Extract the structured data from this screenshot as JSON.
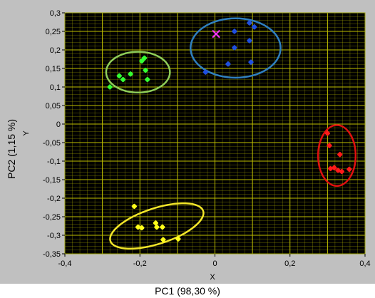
{
  "chart_data": {
    "type": "scatter",
    "title": "",
    "xlabel": "PC1 (98,30 %)",
    "ylabel": "PC2 (1,15 %)",
    "inner_xlabel": "X",
    "inner_ylabel": "Y",
    "xlim": [
      -0.4,
      0.4
    ],
    "ylim": [
      -0.35,
      0.3
    ],
    "x_ticks": [
      "-0,4",
      "-0,2",
      "0",
      "0,2",
      "0,4"
    ],
    "y_ticks": [
      "0,3",
      "0,25",
      "0,2",
      "0,15",
      "0,1",
      "0,05",
      "0",
      "-0,05",
      "-0,1",
      "-0,15",
      "-0,2",
      "-0,25",
      "-0,3",
      "-0,35"
    ],
    "grid": true,
    "colors": {
      "plot_background": "#000000",
      "grid": "#bfbf00",
      "frame": "#c0c0c0",
      "green": "#33ff33",
      "blue": "#1f4fe0",
      "red": "#ff1a1a",
      "yellow": "#ffff1a",
      "magenta": "#ff33ff",
      "green_ellipse": "#8fce5a",
      "blue_ellipse": "#2f7fc0",
      "red_ellipse": "#e01010",
      "yellow_ellipse": "#f2e62a"
    },
    "series": [
      {
        "color": "#33ff33",
        "ellipse_color": "#8fce5a",
        "points": [
          [
            -0.28,
            0.1
          ],
          [
            -0.255,
            0.13
          ],
          [
            -0.245,
            0.12
          ],
          [
            -0.225,
            0.135
          ],
          [
            -0.195,
            0.17
          ],
          [
            -0.188,
            0.178
          ],
          [
            -0.185,
            0.145
          ],
          [
            -0.18,
            0.12
          ]
        ],
        "ellipse": {
          "cx": -0.205,
          "cy": 0.14,
          "rx": 0.085,
          "ry": 0.055,
          "rot": 0
        }
      },
      {
        "color": "#1f4fe0",
        "ellipse_color": "#2f7fc0",
        "points": [
          [
            -0.025,
            0.14
          ],
          [
            0.035,
            0.162
          ],
          [
            0.052,
            0.206
          ],
          [
            0.052,
            0.25
          ],
          [
            0.092,
            0.273
          ],
          [
            0.092,
            0.225
          ],
          [
            0.096,
            0.167
          ],
          [
            0.105,
            0.262
          ]
        ],
        "ellipse": {
          "cx": 0.055,
          "cy": 0.205,
          "rx": 0.12,
          "ry": 0.08,
          "rot": 0
        }
      },
      {
        "color": "#ff1a1a",
        "ellipse_color": "#e01010",
        "points": [
          [
            0.3,
            -0.025
          ],
          [
            0.305,
            -0.058
          ],
          [
            0.308,
            -0.12
          ],
          [
            0.318,
            -0.118
          ],
          [
            0.328,
            -0.125
          ],
          [
            0.333,
            -0.082
          ],
          [
            0.338,
            -0.128
          ],
          [
            0.358,
            -0.122
          ]
        ],
        "ellipse": {
          "cx": 0.325,
          "cy": -0.085,
          "rx": 0.05,
          "ry": 0.082,
          "rot": 0
        }
      },
      {
        "color": "#ffff1a",
        "ellipse_color": "#f2e62a",
        "points": [
          [
            -0.215,
            -0.222
          ],
          [
            -0.205,
            -0.278
          ],
          [
            -0.195,
            -0.28
          ],
          [
            -0.158,
            -0.267
          ],
          [
            -0.155,
            -0.278
          ],
          [
            -0.14,
            -0.278
          ],
          [
            -0.138,
            -0.312
          ],
          [
            -0.098,
            -0.31
          ]
        ],
        "ellipse": {
          "cx": -0.155,
          "cy": -0.275,
          "rx": 0.13,
          "ry": 0.048,
          "rot": -18
        }
      }
    ],
    "markers": [
      {
        "x": 0.003,
        "y": 0.243,
        "color": "#ff33ff",
        "shape": "x"
      }
    ]
  }
}
